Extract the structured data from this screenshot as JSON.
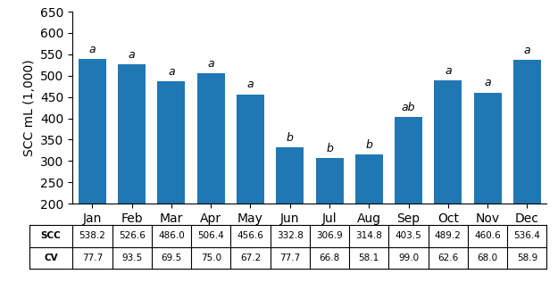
{
  "chart_data": {
    "type": "bar",
    "categories": [
      "Jan",
      "Feb",
      "Mar",
      "Apr",
      "May",
      "Jun",
      "Jul",
      "Aug",
      "Sep",
      "Oct",
      "Nov",
      "Dec"
    ],
    "values": [
      538.2,
      526.6,
      486.0,
      506.4,
      456.6,
      332.8,
      306.9,
      314.8,
      403.5,
      489.2,
      460.6,
      536.4
    ],
    "y_label": "SCC mL (1,000)",
    "ylim": [
      200,
      650
    ],
    "yticks": [
      200,
      250,
      300,
      350,
      400,
      450,
      500,
      550,
      600,
      650
    ],
    "annotations": [
      "a",
      "a",
      "a",
      "a",
      "a",
      "b",
      "b",
      "b",
      "ab",
      "a",
      "a",
      "a"
    ],
    "table": [
      {
        "name": "SCC",
        "values": [
          538.2,
          526.6,
          486.0,
          506.4,
          456.6,
          332.8,
          306.9,
          314.8,
          403.5,
          489.2,
          460.6,
          536.4
        ]
      },
      {
        "name": "CV",
        "values": [
          77.7,
          93.5,
          69.5,
          75.0,
          67.2,
          77.7,
          66.8,
          58.1,
          99.0,
          62.6,
          68.0,
          58.9
        ]
      }
    ]
  }
}
